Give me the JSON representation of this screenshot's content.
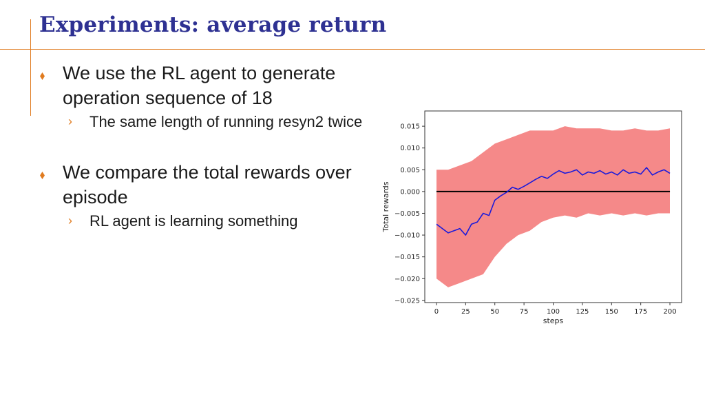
{
  "slide": {
    "title": "Experiments: average return",
    "bullets": [
      {
        "text": "We use the RL agent to generate operation sequence of 18",
        "sub": [
          "The same length of running resyn2 twice"
        ]
      },
      {
        "text": "We compare the total rewards over episode",
        "sub": [
          "RL agent is learning something"
        ]
      }
    ]
  },
  "chart_data": {
    "type": "line",
    "xlabel": "steps",
    "ylabel": "Total rewards",
    "xlim": [
      -10,
      210
    ],
    "ylim": [
      -0.0255,
      0.0185
    ],
    "xticks": [
      0,
      25,
      50,
      75,
      100,
      125,
      150,
      175,
      200
    ],
    "xtick_labels": [
      "0",
      "25",
      "50",
      "75",
      "100",
      "125",
      "150",
      "175",
      "200"
    ],
    "yticks": [
      0.015,
      0.01,
      0.005,
      0.0,
      -0.005,
      -0.01,
      -0.015,
      -0.02,
      -0.025
    ],
    "ytick_labels": [
      "0.015",
      "0.010",
      "0.005",
      "0.000",
      "−0.005",
      "−0.010",
      "−0.015",
      "−0.020",
      "−0.025"
    ],
    "grid": false,
    "colors": {
      "mean": "#1a1adb",
      "band": "#f47c7c",
      "baseline": "#000000"
    },
    "baseline": 0.0,
    "mean": {
      "x": [
        0,
        10,
        20,
        25,
        30,
        35,
        40,
        45,
        50,
        55,
        60,
        65,
        70,
        75,
        80,
        85,
        90,
        95,
        100,
        105,
        110,
        115,
        120,
        125,
        130,
        135,
        140,
        145,
        150,
        155,
        160,
        165,
        170,
        175,
        180,
        185,
        190,
        195,
        200
      ],
      "y": [
        -0.0075,
        -0.0095,
        -0.0085,
        -0.01,
        -0.0075,
        -0.007,
        -0.005,
        -0.0055,
        -0.002,
        -0.001,
        -0.0002,
        0.001,
        0.0005,
        0.0012,
        0.002,
        0.0028,
        0.0035,
        0.003,
        0.004,
        0.0048,
        0.0042,
        0.0045,
        0.005,
        0.0038,
        0.0045,
        0.0042,
        0.0048,
        0.004,
        0.0045,
        0.0038,
        0.005,
        0.0042,
        0.0045,
        0.004,
        0.0055,
        0.0038,
        0.0045,
        0.005,
        0.0042
      ]
    },
    "band": {
      "x": [
        0,
        10,
        20,
        30,
        40,
        50,
        60,
        70,
        80,
        90,
        100,
        110,
        120,
        130,
        140,
        150,
        160,
        170,
        180,
        190,
        200
      ],
      "upper": [
        0.005,
        0.005,
        0.006,
        0.007,
        0.009,
        0.011,
        0.012,
        0.013,
        0.014,
        0.014,
        0.014,
        0.015,
        0.0145,
        0.0145,
        0.0145,
        0.014,
        0.014,
        0.0145,
        0.014,
        0.014,
        0.0145
      ],
      "lower": [
        -0.02,
        -0.022,
        -0.021,
        -0.02,
        -0.019,
        -0.015,
        -0.012,
        -0.01,
        -0.009,
        -0.007,
        -0.006,
        -0.0055,
        -0.006,
        -0.005,
        -0.0055,
        -0.005,
        -0.0055,
        -0.005,
        -0.0055,
        -0.005,
        -0.005
      ]
    }
  }
}
